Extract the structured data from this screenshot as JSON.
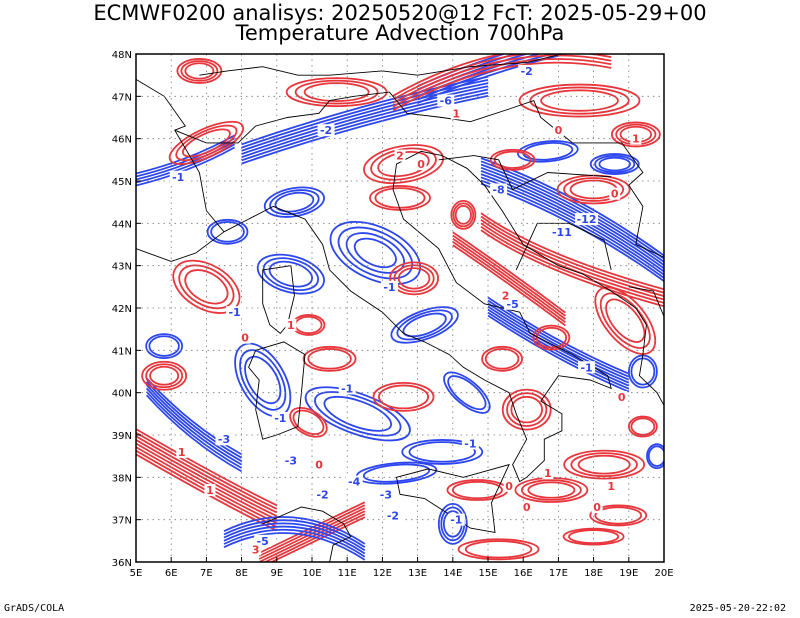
{
  "title": {
    "line1": "ECMWF0200 analisys: 20250520@12 FcT: 2025-05-29+00",
    "line2": "Temperature Advection 700hPa"
  },
  "footer": {
    "left": "GrADS/COLA",
    "right": "2025-05-20-22:02"
  },
  "map": {
    "lon_range": [
      5,
      20
    ],
    "lat_range": [
      36,
      48
    ],
    "x_ticks": [
      "5E",
      "6E",
      "7E",
      "8E",
      "9E",
      "10E",
      "11E",
      "12E",
      "13E",
      "14E",
      "15E",
      "16E",
      "17E",
      "18E",
      "19E",
      "20E"
    ],
    "y_ticks": [
      "36N",
      "37N",
      "38N",
      "39N",
      "40N",
      "41N",
      "42N",
      "43N",
      "44N",
      "45N",
      "46N",
      "47N",
      "48N"
    ],
    "grid": "dotted",
    "colors": {
      "positive_contours": "#e8363c",
      "negative_contours": "#2c46f0",
      "coastline": "#000000"
    },
    "contour_labels": [
      {
        "text": "-1",
        "lon": 6.2,
        "lat": 45.1,
        "sign": "neg"
      },
      {
        "text": "-2",
        "lon": 10.4,
        "lat": 46.2,
        "sign": "neg"
      },
      {
        "text": "-6",
        "lon": 13.8,
        "lat": 46.9,
        "sign": "neg"
      },
      {
        "text": "-2",
        "lon": 16.1,
        "lat": 47.6,
        "sign": "neg"
      },
      {
        "text": "-8",
        "lon": 15.3,
        "lat": 44.8,
        "sign": "neg"
      },
      {
        "text": "-11",
        "lon": 17.1,
        "lat": 43.8,
        "sign": "neg"
      },
      {
        "text": "-12",
        "lon": 17.8,
        "lat": 44.1,
        "sign": "neg"
      },
      {
        "text": "-5",
        "lon": 15.7,
        "lat": 42.1,
        "sign": "neg"
      },
      {
        "text": "-1",
        "lon": 12.2,
        "lat": 42.5,
        "sign": "neg"
      },
      {
        "text": "-1",
        "lon": 7.8,
        "lat": 41.9,
        "sign": "neg"
      },
      {
        "text": "-1",
        "lon": 11.0,
        "lat": 40.1,
        "sign": "neg"
      },
      {
        "text": "-1",
        "lon": 9.1,
        "lat": 39.4,
        "sign": "neg"
      },
      {
        "text": "-3",
        "lon": 7.5,
        "lat": 38.9,
        "sign": "neg"
      },
      {
        "text": "-3",
        "lon": 9.4,
        "lat": 38.4,
        "sign": "neg"
      },
      {
        "text": "-4",
        "lon": 11.2,
        "lat": 37.9,
        "sign": "neg"
      },
      {
        "text": "-2",
        "lon": 10.3,
        "lat": 37.6,
        "sign": "neg"
      },
      {
        "text": "-3",
        "lon": 12.1,
        "lat": 37.6,
        "sign": "neg"
      },
      {
        "text": "-1",
        "lon": 14.1,
        "lat": 37.0,
        "sign": "neg"
      },
      {
        "text": "-1",
        "lon": 14.5,
        "lat": 38.8,
        "sign": "neg"
      },
      {
        "text": "-2",
        "lon": 12.3,
        "lat": 37.1,
        "sign": "neg"
      },
      {
        "text": "-5",
        "lon": 8.6,
        "lat": 36.5,
        "sign": "neg"
      },
      {
        "text": "-1",
        "lon": 17.8,
        "lat": 40.6,
        "sign": "neg"
      },
      {
        "text": "2",
        "lon": 12.5,
        "lat": 45.6,
        "sign": "pos"
      },
      {
        "text": "0",
        "lon": 13.1,
        "lat": 45.4,
        "sign": "pos"
      },
      {
        "text": "1",
        "lon": 14.1,
        "lat": 46.6,
        "sign": "pos"
      },
      {
        "text": "0",
        "lon": 17.0,
        "lat": 46.2,
        "sign": "pos"
      },
      {
        "text": "1",
        "lon": 19.2,
        "lat": 46.0,
        "sign": "pos"
      },
      {
        "text": "0",
        "lon": 18.6,
        "lat": 44.7,
        "sign": "pos"
      },
      {
        "text": "2",
        "lon": 15.5,
        "lat": 42.3,
        "sign": "pos"
      },
      {
        "text": "1",
        "lon": 9.4,
        "lat": 41.6,
        "sign": "pos"
      },
      {
        "text": "0",
        "lon": 8.1,
        "lat": 41.3,
        "sign": "pos"
      },
      {
        "text": "1",
        "lon": 6.3,
        "lat": 38.6,
        "sign": "pos"
      },
      {
        "text": "1",
        "lon": 7.1,
        "lat": 37.7,
        "sign": "pos"
      },
      {
        "text": "0",
        "lon": 10.2,
        "lat": 38.3,
        "sign": "pos"
      },
      {
        "text": "0",
        "lon": 15.6,
        "lat": 37.8,
        "sign": "pos"
      },
      {
        "text": "0",
        "lon": 16.1,
        "lat": 37.3,
        "sign": "pos"
      },
      {
        "text": "0",
        "lon": 18.1,
        "lat": 37.3,
        "sign": "pos"
      },
      {
        "text": "1",
        "lon": 18.5,
        "lat": 37.8,
        "sign": "pos"
      },
      {
        "text": "1",
        "lon": 16.7,
        "lat": 38.1,
        "sign": "pos"
      },
      {
        "text": "0",
        "lon": 18.8,
        "lat": 39.9,
        "sign": "pos"
      },
      {
        "text": "3",
        "lon": 8.4,
        "lat": 36.3,
        "sign": "pos"
      }
    ]
  }
}
